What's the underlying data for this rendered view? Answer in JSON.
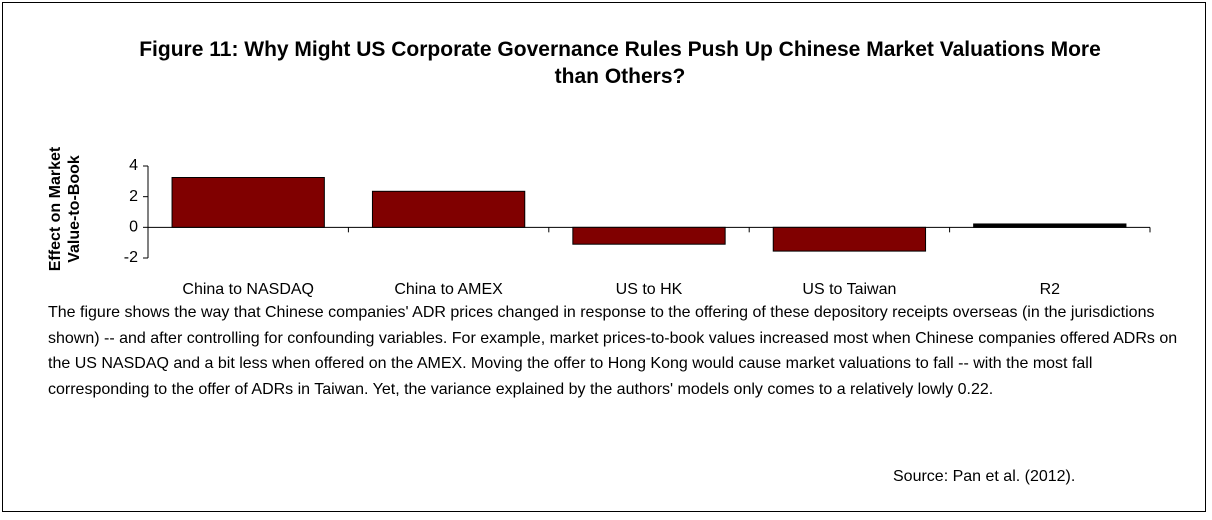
{
  "chart_data": {
    "type": "bar",
    "title": "Figure 11: Why Might US Corporate Governance Rules Push Up Chinese Market Valuations More than Others?",
    "y_label": "Effect on Market Value-to-Book",
    "categories": [
      "China to NASDAQ",
      "China to AMEX",
      "US to HK",
      "US to Taiwan",
      "R2"
    ],
    "values": [
      3.25,
      2.35,
      -1.1,
      -1.55,
      0.22
    ],
    "colors": [
      "#800000",
      "#800000",
      "#800000",
      "#800000",
      "#000000"
    ],
    "ylim": [
      -2,
      4
    ],
    "yticks": [
      -2,
      0,
      2,
      4
    ],
    "grid": false,
    "caption": "The figure shows the way that Chinese companies' ADR prices changed in response to the offering of these depository receipts overseas (in the jurisdictions shown) -- and after controlling for confounding variables. For example, market prices-to-book values increased most when Chinese companies offered ADRs on the US NASDAQ and a bit less when offered on the AMEX. Moving the offer to Hong Kong would cause market valuations to fall -- with the most fall corresponding to the offer of ADRs in Taiwan. Yet, the variance explained by the authors' models only comes to a relatively lowly 0.22.",
    "source": "Source: Pan et al. (2012)."
  }
}
